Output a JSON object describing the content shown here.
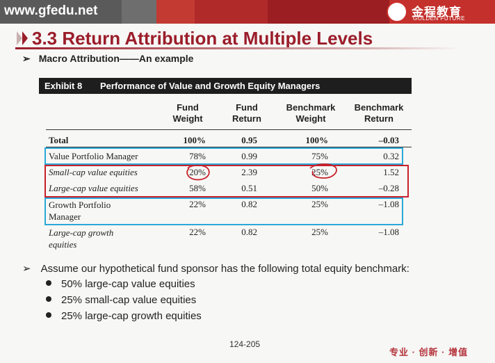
{
  "header": {
    "url": "www.gfedu.net",
    "logo_cn": "金程教育",
    "logo_en": "GOLDEN FUTURE"
  },
  "slide": {
    "title": "3.3 Return Attribution at Multiple Levels",
    "subtitle_arrow": "➢",
    "subtitle": "Macro Attribution——An example"
  },
  "exhibit": {
    "number": "Exhibit 8",
    "caption": "Performance of Value and Growth Equity Managers",
    "columns": [
      {
        "l1": "Fund",
        "l2": "Weight"
      },
      {
        "l1": "Fund",
        "l2": "Return"
      },
      {
        "l1": "Benchmark",
        "l2": "Weight"
      },
      {
        "l1": "Benchmark",
        "l2": "Return"
      }
    ],
    "rows": [
      {
        "l1": "Total",
        "l2": "",
        "vals": [
          "100%",
          "0.95",
          "100%",
          "–0.03"
        ]
      },
      {
        "l1": "Value Portfolio Manager",
        "l2": "",
        "vals": [
          "78%",
          "0.99",
          "75%",
          "0.32"
        ]
      },
      {
        "l1": "Small-cap value equities",
        "l2": "",
        "vals": [
          "20%",
          "2.39",
          "25%",
          "1.52"
        ]
      },
      {
        "l1": "Large-cap value equities",
        "l2": "",
        "vals": [
          "58%",
          "0.51",
          "50%",
          "–0.28"
        ]
      },
      {
        "l1": "Growth Portfolio",
        "l2": "Manager",
        "vals": [
          "22%",
          "0.82",
          "25%",
          "–1.08"
        ]
      },
      {
        "l1": "Large-cap growth",
        "l2": "equities",
        "vals": [
          "22%",
          "0.82",
          "25%",
          "–1.08"
        ]
      }
    ]
  },
  "assumption": {
    "arrow": "➢",
    "text": "Assume our hypothetical fund sponsor has the following total equity benchmark:",
    "bullets": [
      "50% large-cap value equities",
      "25% small-cap value equities",
      "25% large-cap growth equities"
    ]
  },
  "footer": {
    "page": "124-205",
    "tagline": "专业 · 创新 · 增值"
  },
  "colors": {
    "title": "#9b1d2a",
    "box_blue": "#2ba8d8",
    "box_red": "#c8202a"
  }
}
